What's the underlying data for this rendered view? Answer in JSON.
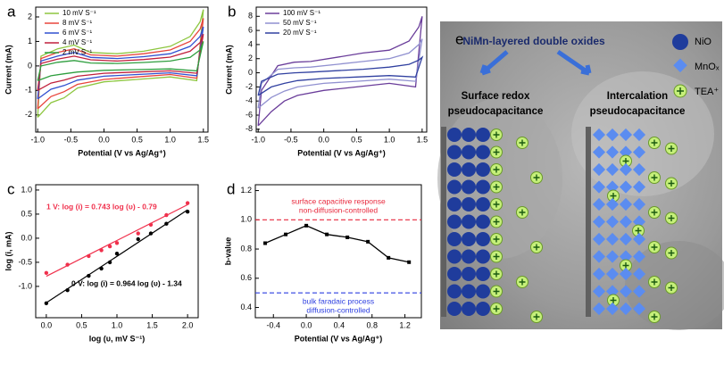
{
  "chart_data": [
    {
      "panel": "a",
      "type": "line",
      "x_label": "Potential (V vs Ag/Ag⁺)",
      "y_label": "Current (mA)",
      "xlim": [
        -1.03,
        1.57
      ],
      "ylim": [
        -2.7,
        2.4
      ],
      "xticks": [
        {
          "value": -1,
          "label": "-1.0"
        },
        {
          "value": -0.5,
          "label": "-0.5"
        },
        {
          "value": 0,
          "label": "0.0"
        },
        {
          "value": 0.5,
          "label": "0.5"
        },
        {
          "value": 1,
          "label": "1.0"
        },
        {
          "value": 1.5,
          "label": "1.5"
        }
      ],
      "yticks": [
        -2,
        -1,
        0,
        1,
        2
      ],
      "x": [
        -1.0,
        -0.95,
        -0.7,
        -0.45,
        -0.2,
        0.2,
        0.6,
        1.0,
        1.3,
        1.45,
        1.5,
        1.4,
        1.0,
        0.5,
        0.0,
        -0.4,
        -0.6,
        -0.8,
        -1.0
      ],
      "series": [
        {
          "name": "10 mV S⁻¹",
          "color": "#8dc63f",
          "values": [
            -2.1,
            0.4,
            0.7,
            0.85,
            0.55,
            0.5,
            0.6,
            0.8,
            1.2,
            1.8,
            2.3,
            -0.6,
            -0.45,
            -0.55,
            -0.65,
            -0.9,
            -1.3,
            -1.5,
            -2.1
          ]
        },
        {
          "name": "8 mV S⁻¹",
          "color": "#e8453c",
          "values": [
            -1.75,
            0.3,
            0.55,
            0.7,
            0.45,
            0.4,
            0.5,
            0.65,
            1.0,
            1.5,
            1.95,
            -0.5,
            -0.35,
            -0.45,
            -0.55,
            -0.75,
            -1.05,
            -1.25,
            -1.75
          ]
        },
        {
          "name": "6 mV S⁻¹",
          "color": "#3050d0",
          "values": [
            -1.35,
            0.2,
            0.4,
            0.55,
            0.35,
            0.3,
            0.38,
            0.5,
            0.8,
            1.2,
            1.6,
            -0.4,
            -0.28,
            -0.35,
            -0.42,
            -0.58,
            -0.8,
            -0.95,
            -1.35
          ]
        },
        {
          "name": "4 mV S⁻¹",
          "color": "#c0203c",
          "values": [
            -1.0,
            0.1,
            0.28,
            0.4,
            0.25,
            0.2,
            0.26,
            0.36,
            0.6,
            0.95,
            1.3,
            -0.3,
            -0.2,
            -0.25,
            -0.3,
            -0.42,
            -0.58,
            -0.7,
            -1.0
          ]
        },
        {
          "name": "2 mV S⁻¹",
          "color": "#2e9e3e",
          "values": [
            -0.6,
            0.0,
            0.15,
            0.22,
            0.12,
            0.1,
            0.14,
            0.2,
            0.35,
            0.65,
            1.0,
            -0.2,
            -0.12,
            -0.15,
            -0.18,
            -0.25,
            -0.32,
            -0.4,
            -0.6
          ]
        }
      ]
    },
    {
      "panel": "b",
      "type": "line",
      "x_label": "Potential (V vs Ag/Ag⁺)",
      "y_label": "Current (mA)",
      "xlim": [
        -1.03,
        1.57
      ],
      "ylim": [
        -8.4,
        9.3
      ],
      "xticks": [
        {
          "value": -1,
          "label": "-1.0"
        },
        {
          "value": -0.5,
          "label": "-0.5"
        },
        {
          "value": 0,
          "label": "0.0"
        },
        {
          "value": 0.5,
          "label": "0.5"
        },
        {
          "value": 1,
          "label": "1.0"
        },
        {
          "value": 1.5,
          "label": "1.5"
        }
      ],
      "yticks": [
        -8,
        -6,
        -4,
        -2,
        0,
        2,
        4,
        6,
        8
      ],
      "x": [
        -1.0,
        -0.95,
        -0.7,
        -0.45,
        -0.2,
        0.2,
        0.6,
        1.0,
        1.3,
        1.45,
        1.5,
        1.4,
        1.0,
        0.5,
        0.0,
        -0.4,
        -0.6,
        -0.8,
        -1.0
      ],
      "series": [
        {
          "name": "100 mV S⁻¹",
          "color": "#6a3d9a",
          "values": [
            -7.5,
            -2.5,
            1.0,
            1.5,
            1.6,
            2.2,
            2.8,
            3.2,
            4.5,
            6.5,
            8.0,
            -2.0,
            -1.5,
            -2.0,
            -2.5,
            -3.2,
            -4.0,
            -5.5,
            -7.5
          ]
        },
        {
          "name": "50 mV S⁻¹",
          "color": "#9090d0",
          "values": [
            -5.0,
            -1.5,
            0.5,
            0.7,
            0.8,
            1.2,
            1.6,
            2.0,
            2.8,
            4.0,
            4.8,
            -1.2,
            -0.9,
            -1.2,
            -1.5,
            -2.0,
            -2.6,
            -3.5,
            -5.0
          ]
        },
        {
          "name": "20 mV S⁻¹",
          "color": "#3040a0",
          "values": [
            -3.2,
            -1.2,
            -0.2,
            0.0,
            0.1,
            0.3,
            0.5,
            0.8,
            1.2,
            1.8,
            2.2,
            -0.6,
            -0.4,
            -0.6,
            -0.8,
            -1.1,
            -1.5,
            -2.0,
            -3.2
          ]
        }
      ]
    },
    {
      "panel": "c",
      "type": "scatter",
      "x_label": "log (υ, mV S⁻¹)",
      "y_label": "log (i, mA)",
      "xlim": [
        -0.15,
        2.15
      ],
      "ylim": [
        -1.65,
        1.11
      ],
      "xticks": [
        {
          "value": 0,
          "label": "0.0"
        },
        {
          "value": 0.5,
          "label": "0.5"
        },
        {
          "value": 1,
          "label": "1.0"
        },
        {
          "value": 1.5,
          "label": "1.5"
        },
        {
          "value": 2,
          "label": "2.0"
        }
      ],
      "yticks": [
        {
          "value": -1,
          "label": "-1.0"
        },
        {
          "value": -0.5,
          "label": "-0.5"
        },
        {
          "value": 0,
          "label": "0.0"
        },
        {
          "value": 0.5,
          "label": "0.5"
        },
        {
          "value": 1,
          "label": "1.0"
        }
      ],
      "series": [
        {
          "color": "#f0304c",
          "x": [
            0,
            0.3,
            0.6,
            0.78,
            0.9,
            1.0,
            1.3,
            1.48,
            1.7,
            2.0
          ],
          "values": [
            -0.72,
            -0.55,
            -0.37,
            -0.25,
            -0.17,
            -0.1,
            0.1,
            0.28,
            0.48,
            0.73
          ],
          "fit": {
            "slope": 0.743,
            "intercept": -0.79
          }
        },
        {
          "color": "#000000",
          "x": [
            0,
            0.3,
            0.6,
            0.78,
            0.9,
            1.0,
            1.3,
            1.48,
            1.7,
            2.0
          ],
          "values": [
            -1.35,
            -1.08,
            -0.78,
            -0.63,
            -0.5,
            -0.32,
            -0.02,
            0.1,
            0.3,
            0.55
          ],
          "fit": {
            "slope": 0.964,
            "intercept": -1.34
          }
        }
      ],
      "annotations": [
        "1 V: log (i) = 0.743 log (υ) - 0.79",
        "0 V: log (i) = 0.964 log (υ) - 1.34"
      ]
    },
    {
      "panel": "d",
      "type": "line",
      "x_label": "Potential (V vs Ag/Ag⁺)",
      "y_label": "b-value",
      "xlim": [
        -0.62,
        1.4
      ],
      "ylim": [
        0.33,
        1.24
      ],
      "xticks": [
        -0.4,
        {
          "value": 0,
          "label": "0.0"
        },
        0.4,
        0.8,
        1.2
      ],
      "yticks": [
        0.4,
        0.6,
        0.8,
        {
          "value": 1,
          "label": "1.0"
        },
        1.2
      ],
      "x": [
        -0.5,
        -0.25,
        0,
        0.25,
        0.5,
        0.75,
        1.0,
        1.25
      ],
      "series": [
        {
          "color": "#000000",
          "values": [
            0.84,
            0.9,
            0.96,
            0.9,
            0.88,
            0.85,
            0.74,
            0.71
          ]
        }
      ],
      "hlines": [
        {
          "value": 1,
          "color": "#e8283c",
          "labels": [
            "surface capacitive response",
            "non-diffusion-controlled"
          ]
        },
        {
          "value": 0.5,
          "color": "#2c3ee0",
          "labels": [
            "bulk faradaic process",
            "diffusion-controlled"
          ]
        }
      ]
    }
  ],
  "schematic": {
    "panel": "e",
    "title": "NiMn-layered double oxides",
    "left_label": [
      "Surface redox",
      "pseudocapacitance"
    ],
    "right_label": [
      "Intercalation",
      "pseudocapacitance"
    ],
    "legend": [
      "NiO",
      "MnOₓ",
      "TEA⁺"
    ]
  }
}
